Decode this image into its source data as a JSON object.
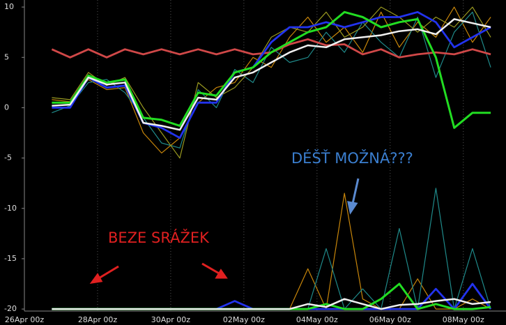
{
  "chart_data": {
    "type": "line",
    "x": [
      18,
      30,
      42,
      54,
      66,
      78,
      90,
      102,
      114,
      126,
      138,
      150,
      162,
      174,
      186,
      198,
      210,
      222,
      234,
      246,
      258,
      270,
      282,
      294,
      306
    ],
    "xlim": [
      0,
      316
    ],
    "xticks": [
      {
        "value": 0,
        "label": "26Apr 00z"
      },
      {
        "value": 48,
        "label": "28Apr 00z"
      },
      {
        "value": 96,
        "label": "30Apr 00z"
      },
      {
        "value": 144,
        "label": "02May 00z"
      },
      {
        "value": 192,
        "label": "04May 00z"
      },
      {
        "value": 240,
        "label": "06May 00z"
      },
      {
        "value": 288,
        "label": "08May 00z"
      }
    ],
    "ylim": [
      -20.2,
      10.7
    ],
    "yticks": [
      -20,
      -15,
      -10,
      -5,
      0,
      5,
      10
    ],
    "grid": true,
    "series": [
      {
        "color": "#c8860a",
        "values": [
          0.8,
          0.6,
          2.8,
          1.8,
          2.0,
          -2.5,
          -4.5,
          -3.0,
          0.5,
          2.0,
          2.5,
          5.0,
          4.0,
          7.0,
          9.0,
          6.5,
          8.0,
          5.5,
          9.5,
          6.0,
          8.5,
          7.0,
          10.0,
          6.5,
          9.0
        ]
      },
      {
        "color": "#1f8a8a",
        "values": [
          -0.5,
          0.2,
          2.5,
          2.8,
          1.5,
          -1.0,
          -3.5,
          -4.0,
          1.8,
          0.0,
          3.8,
          2.5,
          6.0,
          4.5,
          5.0,
          7.5,
          5.5,
          8.5,
          6.5,
          5.0,
          9.0,
          3.0,
          7.5,
          9.5,
          4.0
        ]
      },
      {
        "color": "#9a9a20",
        "values": [
          1.0,
          0.8,
          3.5,
          2.2,
          3.0,
          0.0,
          -2.5,
          -5.0,
          2.5,
          1.0,
          2.0,
          4.0,
          7.0,
          8.0,
          7.5,
          9.5,
          7.0,
          8.0,
          10.0,
          9.0,
          7.5,
          9.0,
          8.0,
          10.0,
          7.0
        ]
      },
      {
        "color": "#d04848",
        "values": [
          5.8,
          5.0,
          5.8,
          5.0,
          5.8,
          5.3,
          5.8,
          5.3,
          5.8,
          5.3,
          5.8,
          5.3,
          5.5,
          6.3,
          6.8,
          6.2,
          6.3,
          5.3,
          5.8,
          5.0,
          5.3,
          5.5,
          5.3,
          5.8,
          5.3
        ]
      },
      {
        "color": "#2233ee",
        "values": [
          0.0,
          0.0,
          3.0,
          2.0,
          2.2,
          -1.5,
          -2.0,
          -3.0,
          0.5,
          0.5,
          3.5,
          4.0,
          6.5,
          8.0,
          8.0,
          8.5,
          8.0,
          8.5,
          9.0,
          9.0,
          9.5,
          8.5,
          6.0,
          7.0,
          8.0
        ]
      },
      {
        "color": "#22dd22",
        "values": [
          0.5,
          0.5,
          3.2,
          2.5,
          2.8,
          -1.0,
          -1.2,
          -1.8,
          1.5,
          1.2,
          3.5,
          4.0,
          5.5,
          6.5,
          7.5,
          8.0,
          9.5,
          9.0,
          8.0,
          8.5,
          8.8,
          5.0,
          -2.0,
          -0.5,
          -0.5
        ]
      },
      {
        "color": "#f0f0f0",
        "values": [
          0.2,
          0.3,
          3.0,
          2.3,
          2.5,
          -1.5,
          -1.8,
          -2.2,
          1.0,
          0.8,
          3.0,
          3.5,
          4.5,
          5.5,
          6.2,
          6.0,
          6.8,
          7.0,
          7.2,
          7.6,
          7.8,
          7.3,
          8.8,
          8.4,
          8.0
        ]
      },
      {
        "color": "#c8860a",
        "values": [
          -20,
          -20,
          -20,
          -20,
          -20,
          -20,
          -20,
          -20,
          -20,
          -20,
          -20,
          -20,
          -20,
          -20,
          -16.0,
          -20,
          -8.5,
          -19.0,
          -20,
          -20,
          -17.0,
          -20,
          -20,
          -19.0,
          -20
        ]
      },
      {
        "color": "#1f8a8a",
        "values": [
          -20,
          -20,
          -20,
          -20,
          -20,
          -20,
          -20,
          -20,
          -20,
          -20,
          -20,
          -20,
          -20,
          -20,
          -20,
          -14.0,
          -20,
          -18.0,
          -20,
          -12.0,
          -20,
          -8.0,
          -20,
          -14.0,
          -20
        ]
      },
      {
        "color": "#2233ee",
        "values": [
          -20,
          -20,
          -20,
          -20,
          -20,
          -20,
          -20,
          -20,
          -20,
          -20,
          -19.2,
          -20,
          -20,
          -20,
          -20,
          -20,
          -20,
          -20,
          -20,
          -20,
          -20,
          -18.0,
          -20,
          -17.5,
          -20
        ]
      },
      {
        "color": "#22dd22",
        "values": [
          -20,
          -20,
          -20,
          -20,
          -20,
          -20,
          -20,
          -20,
          -20,
          -20,
          -20,
          -20,
          -20,
          -20,
          -20,
          -19.5,
          -20,
          -20,
          -19.0,
          -17.5,
          -20,
          -19.5,
          -20,
          -20,
          -19.8
        ]
      },
      {
        "color": "#f0f0f0",
        "values": [
          -20,
          -20,
          -20,
          -20,
          -20,
          -20,
          -20,
          -20,
          -20,
          -20,
          -20,
          -20,
          -20,
          -20,
          -19.5,
          -19.8,
          -19.0,
          -19.5,
          -20,
          -19.6,
          -19.5,
          -19.2,
          -19.0,
          -19.5,
          -19.3
        ]
      }
    ],
    "annotations": [
      "BEZE SRÁŽEK",
      "DÉŠŤ MOŽNÁ???"
    ]
  }
}
